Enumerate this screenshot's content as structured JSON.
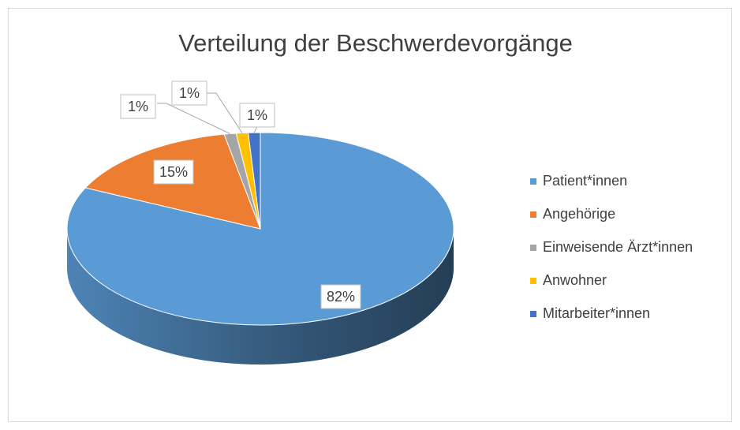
{
  "chart_data": {
    "type": "pie",
    "title": "Verteilung der Beschwerdevorgänge",
    "categories": [
      "Patient*innen",
      "Angehörige",
      "Einweisende Ärzt*innen",
      "Anwohner",
      "Mitarbeiter*innen"
    ],
    "values": [
      82,
      15,
      1,
      1,
      1
    ],
    "value_labels": [
      "82%",
      "15%",
      "1%",
      "1%",
      "1%"
    ],
    "colors": [
      "#5b9bd5",
      "#ed7d31",
      "#a5a5a5",
      "#ffc000",
      "#4472c4"
    ],
    "legend": "right"
  }
}
